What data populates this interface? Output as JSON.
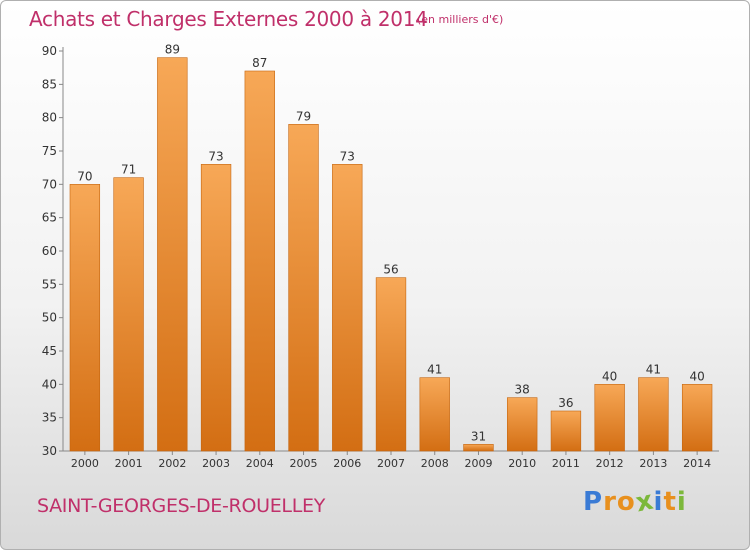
{
  "header": {
    "title": "Achats et Charges Externes 2000 à 2014",
    "unit_note": "(en milliers d'€)"
  },
  "footer": {
    "place_name": "SAINT-GEORGES-DE-ROUELLEY",
    "logo_letters": [
      "P",
      "r",
      "o",
      "x",
      "i",
      "t",
      "i"
    ],
    "logo_colors": [
      "#3a7bd5",
      "#e8901e",
      "#e8901e",
      "#7cb83b",
      "#3a7bd5",
      "#e8901e",
      "#7cb83b"
    ]
  },
  "colors": {
    "bar_top": "#f7a857",
    "bar_bottom": "#d36e13",
    "axis_text": "#333333",
    "label_text": "#333333",
    "grid": "#cccccc",
    "accent": "#c0306a"
  },
  "chart_data": {
    "type": "bar",
    "title": "Achats et Charges Externes 2000 à 2014",
    "subtitle": "(en milliers d'€)",
    "xlabel": "",
    "ylabel": "",
    "categories": [
      "2000",
      "2001",
      "2002",
      "2003",
      "2004",
      "2005",
      "2006",
      "2007",
      "2008",
      "2009",
      "2010",
      "2011",
      "2012",
      "2013",
      "2014"
    ],
    "values": [
      70,
      71,
      89,
      73,
      87,
      79,
      73,
      56,
      41,
      31,
      38,
      36,
      40,
      41,
      40
    ],
    "ylim": [
      30,
      90
    ],
    "yticks": [
      30,
      35,
      40,
      45,
      50,
      55,
      60,
      65,
      70,
      75,
      80,
      85,
      90
    ],
    "grid": false,
    "legend": "none"
  }
}
